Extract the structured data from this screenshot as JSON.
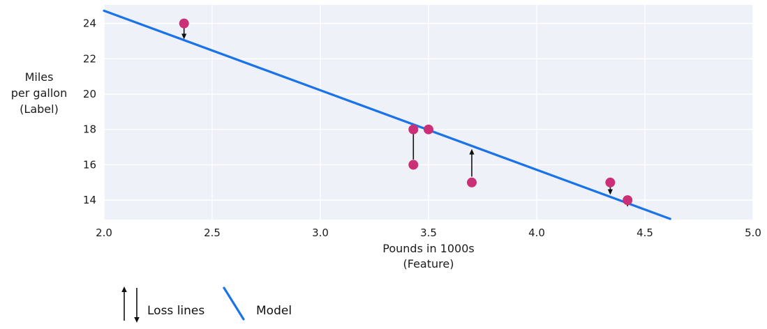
{
  "chart_data": {
    "type": "scatter",
    "title": "",
    "xlabel_lines": [
      "Pounds in 1000s",
      "(Feature)"
    ],
    "ylabel_lines": [
      "Miles",
      "per gallon",
      "(Label)"
    ],
    "xlim": [
      2.0,
      5.0
    ],
    "ylim": [
      12.9,
      25.05
    ],
    "xticks": [
      2.0,
      2.5,
      3.0,
      3.5,
      4.0,
      4.5,
      5.0
    ],
    "xtick_labels": [
      "2.0",
      "2.5",
      "3.0",
      "3.5",
      "4.0",
      "4.5",
      "5.0"
    ],
    "yticks": [
      14,
      16,
      18,
      20,
      22,
      24
    ],
    "ytick_labels": [
      "14",
      "16",
      "18",
      "20",
      "22",
      "24"
    ],
    "grid": true,
    "legend_position": "bottom-left",
    "points": [
      {
        "x": 2.37,
        "y": 24
      },
      {
        "x": 3.43,
        "y": 18
      },
      {
        "x": 3.43,
        "y": 16
      },
      {
        "x": 3.5,
        "y": 18
      },
      {
        "x": 3.7,
        "y": 15
      },
      {
        "x": 4.34,
        "y": 15
      },
      {
        "x": 4.42,
        "y": 14
      }
    ],
    "model_line": {
      "x1": 2.0,
      "y1": 24.72,
      "x2": 4.617,
      "y2": 12.94
    },
    "loss_arrows": [
      {
        "x": 2.37,
        "from": 23.78,
        "to": 23.1
      },
      {
        "x": 3.43,
        "from": 16.3,
        "to": 18.28
      },
      {
        "x": 3.7,
        "from": 15.33,
        "to": 16.9
      },
      {
        "x": 4.34,
        "from": 14.78,
        "to": 14.3
      },
      {
        "x": 4.42,
        "from": 13.88,
        "to": 13.62
      }
    ],
    "colors": {
      "point": "#cb3077",
      "model_line": "#1a73e8",
      "plot_bg": "#eef1f7",
      "grid": "#ffffff",
      "arrow": "#111111",
      "text": "#1b1b1b"
    }
  },
  "legend": {
    "loss_label": "Loss lines",
    "model_label": "Model"
  }
}
